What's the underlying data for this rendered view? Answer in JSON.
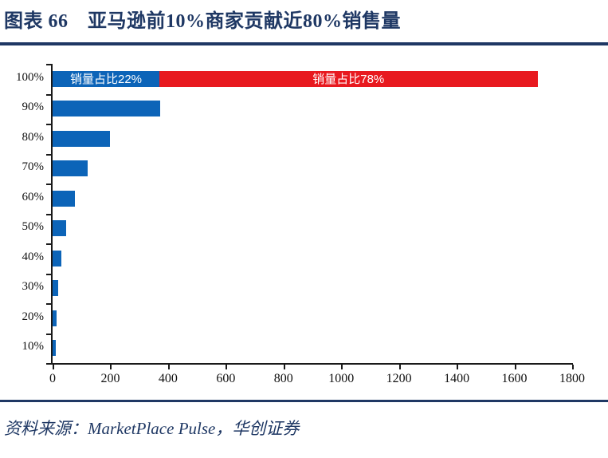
{
  "header": {
    "title": "图表 66　亚马逊前10%商家贡献近80%销售量"
  },
  "footer": {
    "source": "资料来源：MarketPlace Pulse，华创证券"
  },
  "colors": {
    "navy": "#1F3864",
    "bar_blue": "#0C64B8",
    "bar_red": "#E8191F",
    "axis": "#1a1a1a",
    "tick_text": "#111111",
    "bar_label_text": "#ffffff"
  },
  "chart_data": {
    "type": "bar",
    "orientation": "horizontal",
    "stacked": true,
    "title": "图表 66　亚马逊前10%商家贡献近80%销售量",
    "categories": [
      "100%",
      "90%",
      "80%",
      "70%",
      "60%",
      "50%",
      "40%",
      "30%",
      "20%",
      "10%"
    ],
    "series": [
      {
        "name": "销量占比22%",
        "color_key": "bar_blue",
        "values": [
          370,
          372,
          200,
          122,
          78,
          48,
          30,
          20,
          15,
          10
        ],
        "label_on_bar": {
          "category_index": 0,
          "text": "销量占比22%"
        }
      },
      {
        "name": "销量占比78%",
        "color_key": "bar_red",
        "values": [
          1310,
          0,
          0,
          0,
          0,
          0,
          0,
          0,
          0,
          0
        ],
        "label_on_bar": {
          "category_index": 0,
          "text": "销量占比78%"
        }
      }
    ],
    "xlim": [
      0,
      1800
    ],
    "x_ticks": [
      0,
      200,
      400,
      600,
      800,
      1000,
      1200,
      1400,
      1600,
      1800
    ],
    "xlabel": "",
    "ylabel": "",
    "grid": false,
    "legend_position": "none"
  }
}
